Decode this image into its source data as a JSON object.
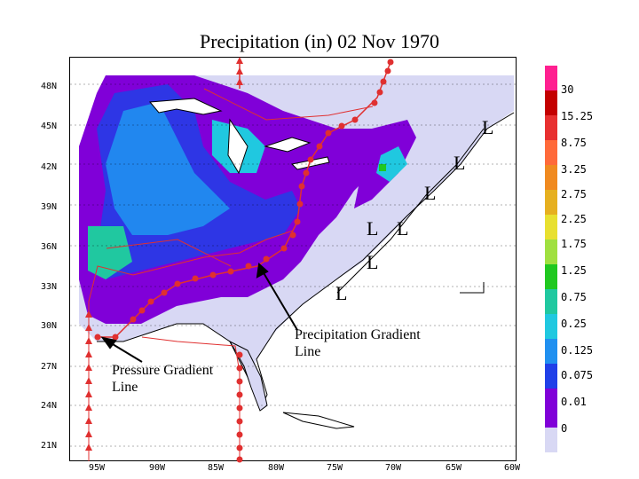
{
  "title": "Precipitation (in) 02 Nov 1970",
  "latitude_labels": [
    "48N",
    "45N",
    "42N",
    "39N",
    "36N",
    "33N",
    "30N",
    "27N",
    "24N",
    "21N"
  ],
  "longitude_labels": [
    "95W",
    "90W",
    "85W",
    "80W",
    "75W",
    "70W",
    "65W",
    "60W"
  ],
  "legend": {
    "labels": [
      "30",
      "15.25",
      "8.75",
      "3.25",
      "2.75",
      "2.25",
      "1.75",
      "1.25",
      "0.75",
      "0.25",
      "0.125",
      "0.075",
      "0.01",
      "0"
    ],
    "colors": [
      "#ff2090",
      "#c40000",
      "#e83030",
      "#ff6a3a",
      "#f08a20",
      "#e6b020",
      "#e8e030",
      "#a0e040",
      "#20c820",
      "#20c8a0",
      "#20c8e0",
      "#2090f0",
      "#2040e8",
      "#8000d8",
      "#d8d8f4"
    ]
  },
  "pressure_lows": [
    "L",
    "L",
    "L",
    "L",
    "L",
    "L",
    "L"
  ],
  "annotations": {
    "precip_gradient": "Precipitation Gradient Line",
    "precip_gradient_line1": "Precipitation Gradient",
    "precip_gradient_line2": "Line",
    "pressure_gradient_line1": "Pressure Gradient",
    "pressure_gradient_line2": "Line"
  }
}
